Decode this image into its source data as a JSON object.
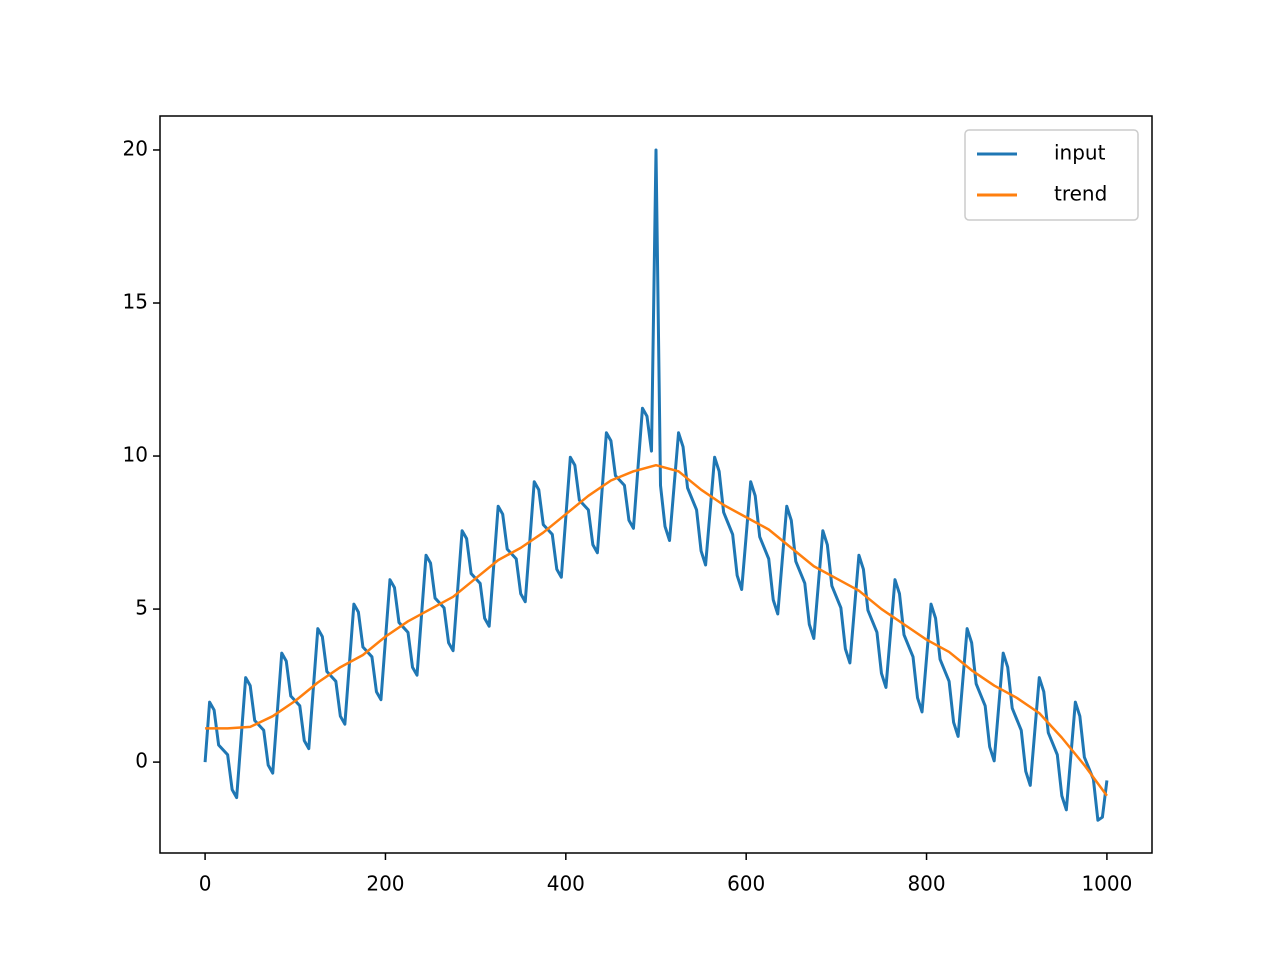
{
  "chart_data": {
    "type": "line",
    "xlim": [
      -50,
      1050
    ],
    "ylim": [
      -2.97,
      21.11
    ],
    "xticks": [
      0,
      200,
      400,
      600,
      800,
      1000
    ],
    "yticks": [
      0,
      5,
      10,
      15,
      20
    ],
    "legend": "upper right",
    "series": [
      {
        "name": "input",
        "color": "#1f77b4",
        "x": [
          0,
          5,
          10,
          15,
          20,
          25,
          30,
          35,
          40,
          45,
          50,
          55,
          60,
          65,
          70,
          75,
          80,
          85,
          90,
          95,
          100,
          105,
          110,
          115,
          120,
          125,
          130,
          135,
          140,
          145,
          150,
          155,
          160,
          165,
          170,
          175,
          180,
          185,
          190,
          195,
          200,
          205,
          210,
          215,
          220,
          225,
          230,
          235,
          240,
          245,
          250,
          255,
          260,
          265,
          270,
          275,
          280,
          285,
          290,
          295,
          300,
          305,
          310,
          315,
          320,
          325,
          330,
          335,
          340,
          345,
          350,
          355,
          360,
          365,
          370,
          375,
          380,
          385,
          390,
          395,
          400,
          405,
          410,
          415,
          420,
          425,
          430,
          435,
          440,
          445,
          450,
          455,
          460,
          465,
          470,
          475,
          480,
          485,
          490,
          495,
          500,
          505,
          510,
          515,
          520,
          525,
          530,
          535,
          540,
          545,
          550,
          555,
          560,
          565,
          570,
          575,
          580,
          585,
          590,
          595,
          600,
          605,
          610,
          615,
          620,
          625,
          630,
          635,
          640,
          645,
          650,
          655,
          660,
          665,
          670,
          675,
          680,
          685,
          690,
          695,
          700,
          705,
          710,
          715,
          720,
          725,
          730,
          735,
          740,
          745,
          750,
          755,
          760,
          765,
          770,
          775,
          780,
          785,
          790,
          795,
          800,
          805,
          810,
          815,
          820,
          825,
          830,
          835,
          840,
          845,
          850,
          855,
          860,
          865,
          870,
          875,
          880,
          885,
          890,
          895,
          900,
          905,
          910,
          915,
          920,
          925,
          930,
          935,
          940,
          945,
          950,
          955,
          960,
          965,
          970,
          975,
          980,
          985,
          990,
          995,
          1000
        ],
        "values": [
          0,
          1.96,
          1.7,
          0.56,
          0.4,
          0.24,
          -0.9,
          -1.16,
          0.8,
          2.76,
          2.5,
          1.36,
          1.2,
          1.04,
          -0.1,
          -0.36,
          1.6,
          3.56,
          3.3,
          2.16,
          2.0,
          1.84,
          0.7,
          0.44,
          2.4,
          4.36,
          4.1,
          2.96,
          2.8,
          2.64,
          1.5,
          1.24,
          3.2,
          5.16,
          4.9,
          3.76,
          3.6,
          3.44,
          2.3,
          2.04,
          4.0,
          5.96,
          5.7,
          4.56,
          4.4,
          4.24,
          3.1,
          2.84,
          4.8,
          6.76,
          6.5,
          5.36,
          5.2,
          5.04,
          3.9,
          3.64,
          5.6,
          7.56,
          7.3,
          6.16,
          6.0,
          5.84,
          4.7,
          4.44,
          6.4,
          8.36,
          8.1,
          6.96,
          6.8,
          6.64,
          5.5,
          5.24,
          7.2,
          9.16,
          8.9,
          7.76,
          7.6,
          7.44,
          6.3,
          6.04,
          8.0,
          9.96,
          9.7,
          8.56,
          8.4,
          8.24,
          7.1,
          6.84,
          8.8,
          10.76,
          10.5,
          9.36,
          9.2,
          9.04,
          7.9,
          7.64,
          9.6,
          11.56,
          11.3,
          10.16,
          20,
          9.04,
          7.7,
          7.24,
          9.0,
          10.76,
          10.3,
          8.96,
          8.6,
          8.24,
          6.9,
          6.44,
          8.2,
          9.96,
          9.5,
          8.16,
          7.8,
          7.44,
          6.1,
          5.64,
          7.4,
          9.16,
          8.7,
          7.36,
          7.0,
          6.64,
          5.3,
          4.84,
          6.6,
          8.36,
          7.9,
          6.56,
          6.2,
          5.84,
          4.5,
          4.04,
          5.8,
          7.56,
          7.1,
          5.76,
          5.4,
          5.04,
          3.7,
          3.24,
          5.0,
          6.76,
          6.3,
          4.96,
          4.6,
          4.24,
          2.9,
          2.44,
          4.2,
          5.96,
          5.5,
          4.16,
          3.8,
          3.44,
          2.1,
          1.64,
          3.4,
          5.16,
          4.7,
          3.36,
          3.0,
          2.64,
          1.3,
          0.84,
          2.6,
          4.36,
          3.9,
          2.56,
          2.2,
          1.84,
          0.5,
          0.04,
          1.8,
          3.56,
          3.1,
          1.76,
          1.4,
          1.04,
          -0.3,
          -0.76,
          1.0,
          2.76,
          2.3,
          0.96,
          0.6,
          0.24,
          -1.1,
          -1.56,
          0.2,
          1.96,
          1.5,
          0.16,
          -0.2,
          -0.56,
          -1.9,
          -1.8,
          -0.6
        ]
      },
      {
        "name": "trend",
        "color": "#ff7f0e",
        "x": [
          0,
          25,
          50,
          75,
          100,
          125,
          150,
          175,
          200,
          225,
          250,
          275,
          300,
          325,
          350,
          375,
          400,
          425,
          450,
          475,
          500,
          525,
          550,
          575,
          600,
          625,
          650,
          675,
          700,
          725,
          750,
          775,
          800,
          825,
          850,
          875,
          900,
          925,
          950,
          975,
          1000
        ],
        "values": [
          1.1,
          1.1,
          1.15,
          1.5,
          2.0,
          2.6,
          3.1,
          3.5,
          4.1,
          4.6,
          5.0,
          5.4,
          6.0,
          6.6,
          7.0,
          7.5,
          8.1,
          8.7,
          9.2,
          9.5,
          9.7,
          9.5,
          8.9,
          8.4,
          8.0,
          7.6,
          7.0,
          6.4,
          6.0,
          5.6,
          5.0,
          4.5,
          4.0,
          3.6,
          3.0,
          2.5,
          2.1,
          1.6,
          0.8,
          -0.1,
          -1.1
        ]
      }
    ]
  }
}
